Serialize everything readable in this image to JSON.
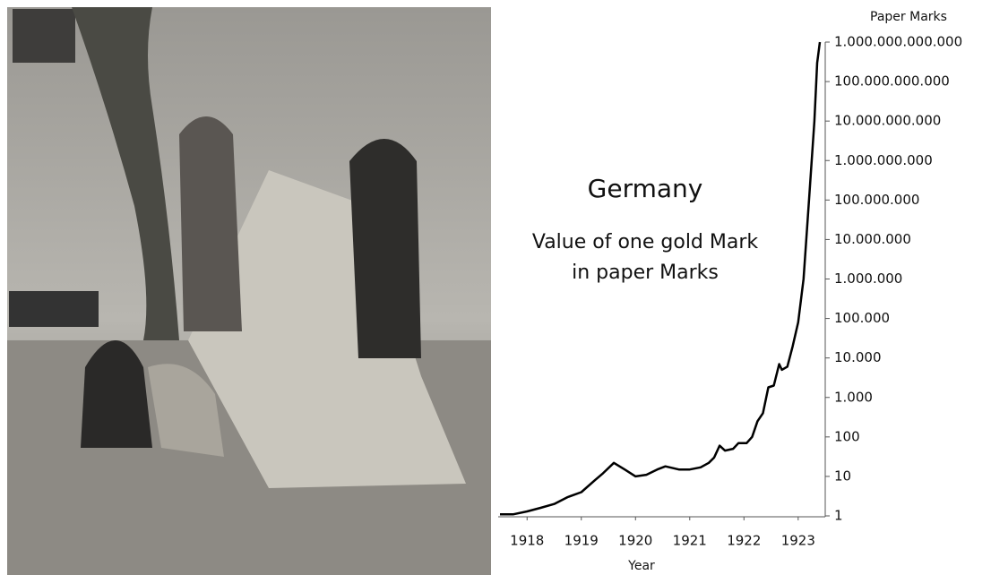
{
  "chart_data": {
    "type": "line",
    "log_scale_y": true,
    "title": "Germany",
    "subtitle": [
      "Value of one gold Mark",
      "in paper Marks"
    ],
    "x_label": "Year",
    "y_label": "Paper Marks",
    "color": "#000000",
    "x": [
      1918.0,
      1918.25,
      1918.5,
      1918.75,
      1919.0,
      1919.25,
      1919.5,
      1919.75,
      1919.9,
      1920.1,
      1920.3,
      1920.5,
      1920.7,
      1920.9,
      1921.05,
      1921.3,
      1921.5,
      1921.7,
      1921.85,
      1921.95,
      1922.05,
      1922.15,
      1922.3,
      1922.4,
      1922.55,
      1922.65,
      1922.75,
      1922.85,
      1922.95,
      1923.05,
      1923.15,
      1923.2,
      1923.3,
      1923.4,
      1923.5,
      1923.6,
      1923.7,
      1923.8,
      1923.85,
      1923.9
    ],
    "values": [
      1.1,
      1.1,
      1.3,
      1.6,
      2,
      3,
      4,
      8,
      12,
      22,
      15,
      10,
      11,
      15,
      18,
      15,
      15,
      17,
      22,
      30,
      60,
      45,
      50,
      70,
      70,
      100,
      250,
      400,
      1800,
      2000,
      7000,
      5000,
      6000,
      20000,
      80000,
      1000000,
      100000000,
      10000000000,
      300000000000,
      1000000000000
    ],
    "xlim": [
      1918.0,
      1923.9
    ],
    "xticks": [
      {
        "value": 1918.5,
        "label": "1918"
      },
      {
        "value": 1919.5,
        "label": "1919"
      },
      {
        "value": 1920.5,
        "label": "1920"
      },
      {
        "value": 1921.5,
        "label": "1921"
      },
      {
        "value": 1922.5,
        "label": "1922"
      },
      {
        "value": 1923.5,
        "label": "1923"
      }
    ],
    "ylim": [
      1,
      1000000000000
    ],
    "yticks": [
      1,
      10,
      100,
      {
        "value": 1000,
        "label": "1.000"
      },
      {
        "value": 10000,
        "label": "10.000"
      },
      {
        "value": 100000,
        "label": "100.000"
      },
      {
        "value": 1000000,
        "label": "1.000.000"
      },
      {
        "value": 10000000,
        "label": "10.000.000"
      },
      {
        "value": 100000000,
        "label": "100.000.000"
      },
      {
        "value": 1000000000,
        "label": "1.000.000.000"
      },
      {
        "value": 10000000000,
        "label": "10.000.000.000"
      },
      {
        "value": 100000000000,
        "label": "100.000.000.000"
      },
      {
        "value": 1000000000000,
        "label": "1.000.000.000.000"
      }
    ]
  }
}
